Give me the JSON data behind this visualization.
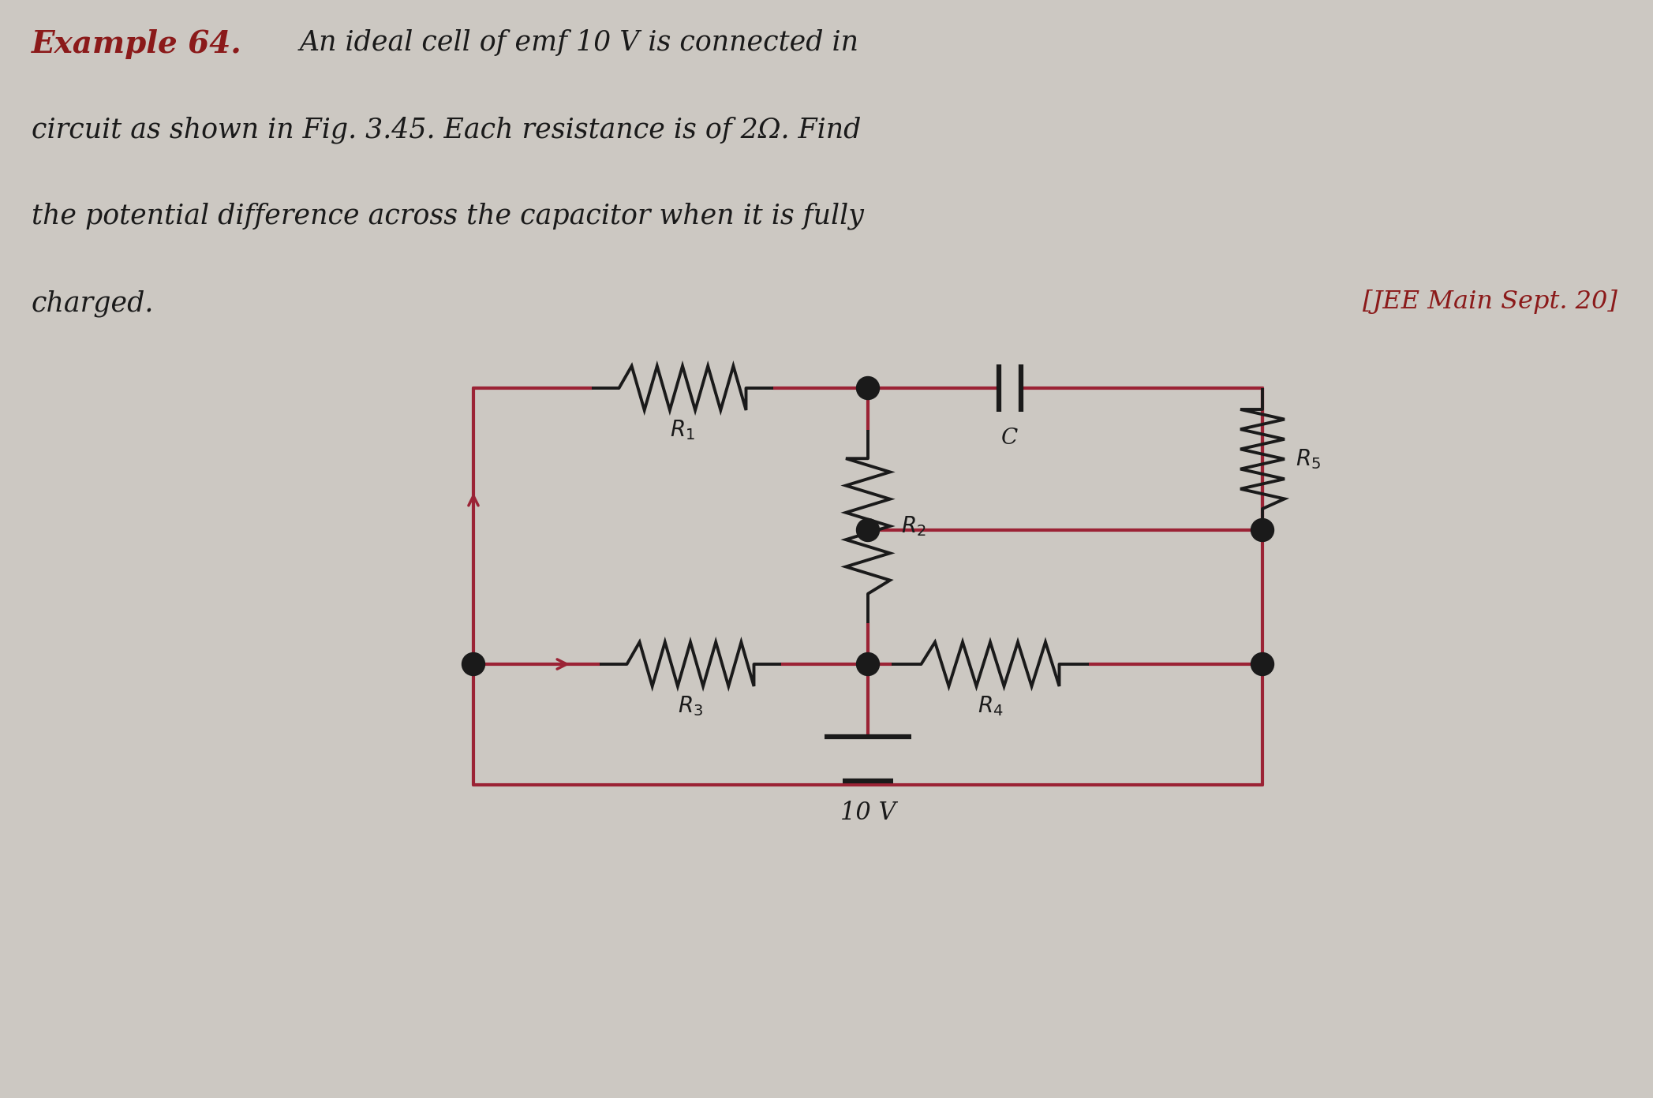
{
  "background_color": "#ccc8c2",
  "title_red": "#8B1A1A",
  "text_color": "#1a1a1a",
  "circuit_color": "#9B2335",
  "component_color": "#1a1a1a",
  "example_label": "Example 64.",
  "body_line1": "An ideal cell of emf 10 V is connected in",
  "body_line2": "circuit as shown in Fig. 3.45. Each resistance is of 2Ω. Find",
  "body_line3": "the potential difference across the capacitor when it is fully",
  "body_line4": "charged.",
  "jee_text": "[JEE Main Sept. 20]",
  "battery_label": "10 V",
  "fig_width": 20.95,
  "fig_height": 13.92,
  "dpi": 100
}
